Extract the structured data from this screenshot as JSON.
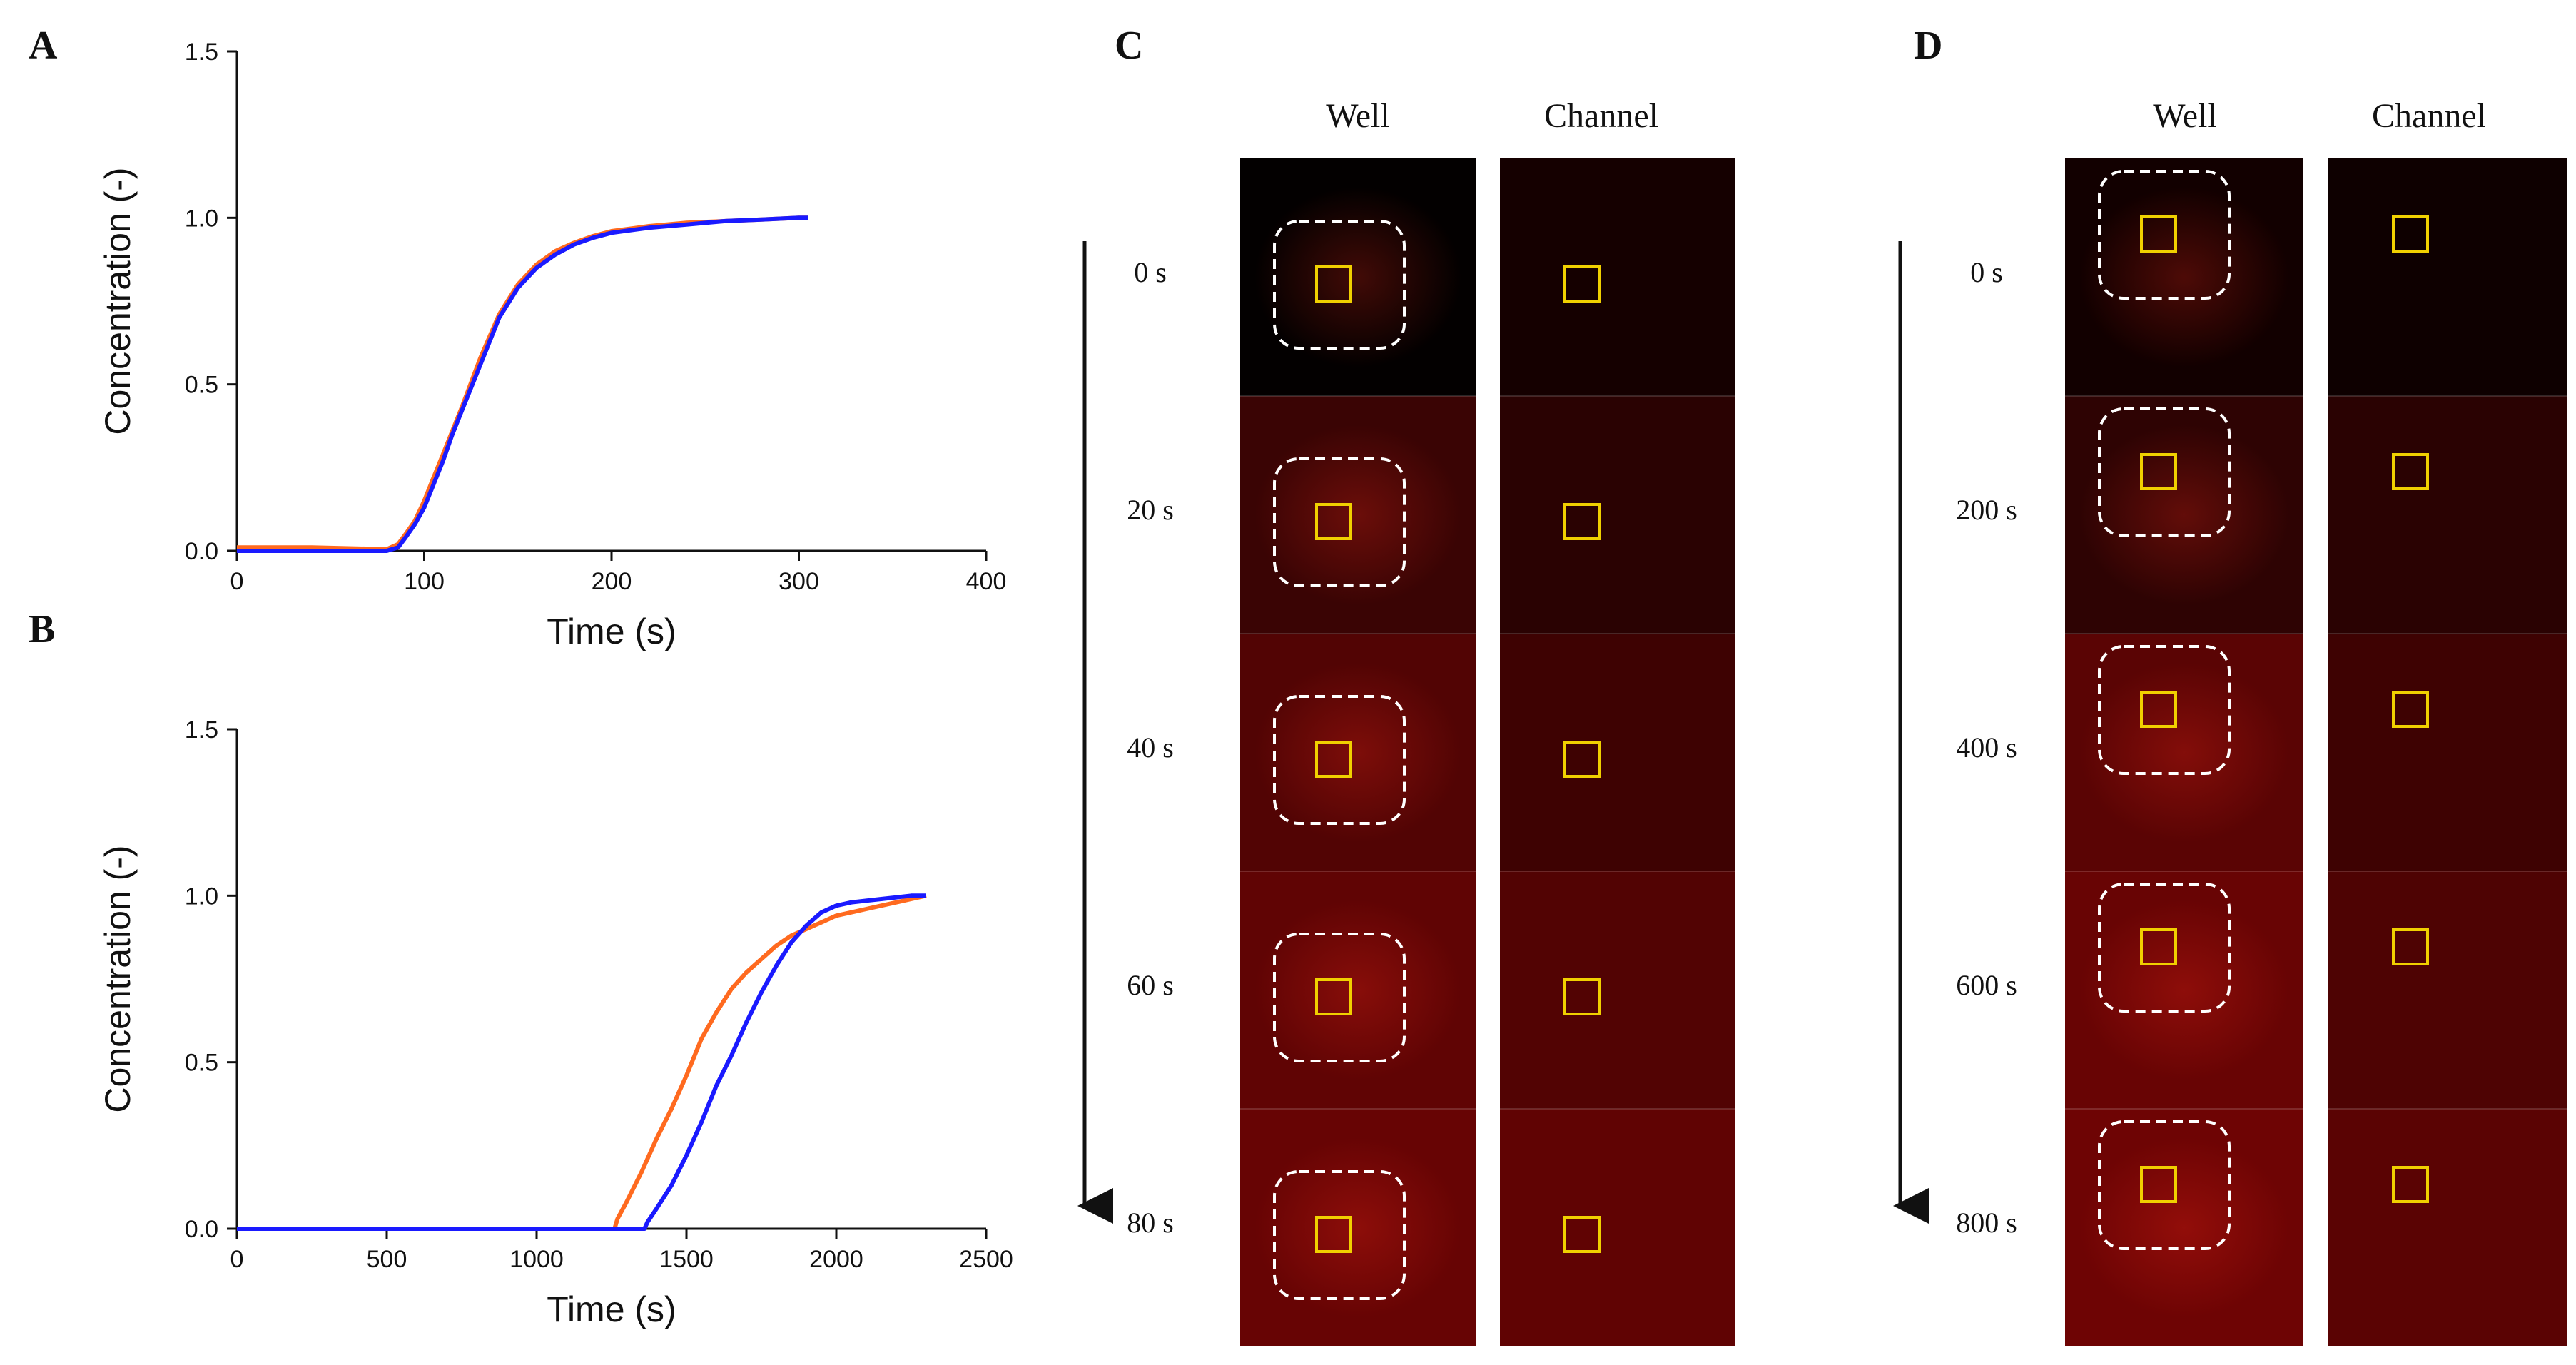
{
  "panels": {
    "A": "A",
    "B": "B",
    "C": "C",
    "D": "D"
  },
  "chart_data": [
    {
      "type": "line",
      "panel": "A",
      "xlabel": "Time  (s)",
      "ylabel": "Concentration  (-)",
      "xlim": [
        0,
        400
      ],
      "ylim": [
        0,
        1.5
      ],
      "xticks": [
        "0",
        "100",
        "200",
        "300",
        "400"
      ],
      "yticks": [
        "0.0",
        "0.5",
        "1.0",
        "1.5"
      ],
      "series": [
        {
          "color": "#ff6a1f",
          "x": [
            0,
            40,
            80,
            86,
            90,
            95,
            100,
            105,
            110,
            115,
            120,
            130,
            140,
            150,
            160,
            170,
            180,
            190,
            200,
            220,
            240,
            260,
            280,
            300,
            305
          ],
          "y": [
            0.01,
            0.01,
            0.005,
            0.02,
            0.05,
            0.09,
            0.15,
            0.22,
            0.29,
            0.36,
            0.43,
            0.58,
            0.71,
            0.8,
            0.86,
            0.9,
            0.925,
            0.945,
            0.96,
            0.975,
            0.985,
            0.99,
            0.995,
            1.0,
            1.0
          ]
        },
        {
          "color": "#1a1aff",
          "x": [
            0,
            40,
            80,
            86,
            90,
            95,
            100,
            105,
            110,
            115,
            120,
            130,
            140,
            150,
            160,
            170,
            180,
            190,
            200,
            220,
            240,
            260,
            280,
            300,
            305
          ],
          "y": [
            0.0,
            0.0,
            0.0,
            0.01,
            0.04,
            0.08,
            0.13,
            0.2,
            0.27,
            0.35,
            0.42,
            0.56,
            0.7,
            0.79,
            0.85,
            0.89,
            0.92,
            0.94,
            0.955,
            0.97,
            0.98,
            0.99,
            0.995,
            1.0,
            1.0
          ]
        }
      ]
    },
    {
      "type": "line",
      "panel": "B",
      "xlabel": "Time (s)",
      "ylabel": "Concentration  (-)",
      "xlim": [
        0,
        2500
      ],
      "ylim": [
        0,
        1.5
      ],
      "xticks": [
        "0",
        "500",
        "1000",
        "1500",
        "2000",
        "2500"
      ],
      "yticks": [
        "0.0",
        "0.5",
        "1.0",
        "1.5"
      ],
      "series": [
        {
          "color": "#ff6a1f",
          "x": [
            0,
            1000,
            1260,
            1270,
            1300,
            1350,
            1400,
            1450,
            1500,
            1550,
            1600,
            1650,
            1700,
            1750,
            1800,
            1850,
            1900,
            1950,
            2000,
            2050,
            2100,
            2150,
            2200,
            2250,
            2300
          ],
          "y": [
            0.0,
            0.0,
            0.0,
            0.03,
            0.08,
            0.17,
            0.27,
            0.36,
            0.46,
            0.57,
            0.65,
            0.72,
            0.77,
            0.81,
            0.85,
            0.88,
            0.9,
            0.92,
            0.94,
            0.95,
            0.96,
            0.97,
            0.98,
            0.99,
            1.0
          ]
        },
        {
          "color": "#1a1aff",
          "x": [
            0,
            1000,
            1360,
            1370,
            1400,
            1450,
            1500,
            1550,
            1600,
            1650,
            1700,
            1750,
            1800,
            1850,
            1900,
            1950,
            2000,
            2050,
            2100,
            2150,
            2200,
            2250,
            2300
          ],
          "y": [
            0.0,
            0.0,
            0.0,
            0.02,
            0.06,
            0.13,
            0.22,
            0.32,
            0.43,
            0.52,
            0.62,
            0.71,
            0.79,
            0.86,
            0.91,
            0.95,
            0.97,
            0.98,
            0.985,
            0.99,
            0.995,
            1.0,
            1.0
          ]
        }
      ]
    }
  ],
  "panel_C": {
    "headers": {
      "well": "Well",
      "channel": "Channel"
    },
    "times": [
      "0 s",
      "20 s",
      "40 s",
      "60 s",
      "80 s"
    ],
    "well_colors": [
      "#030000",
      "#3a0404",
      "#520404",
      "#600404",
      "#670404"
    ],
    "channel_colors": [
      "#150000",
      "#2a0202",
      "#3e0202",
      "#520303",
      "#600303"
    ]
  },
  "panel_D": {
    "headers": {
      "well": "Well",
      "channel": "Channel"
    },
    "times": [
      "0 s",
      "200 s",
      "400 s",
      "600 s",
      "800 s"
    ],
    "well_colors": [
      "#120000",
      "#2e0303",
      "#5a0404",
      "#680404",
      "#6e0404"
    ],
    "channel_colors": [
      "#0e0000",
      "#2a0202",
      "#3e0202",
      "#4e0303",
      "#5a0303"
    ]
  }
}
